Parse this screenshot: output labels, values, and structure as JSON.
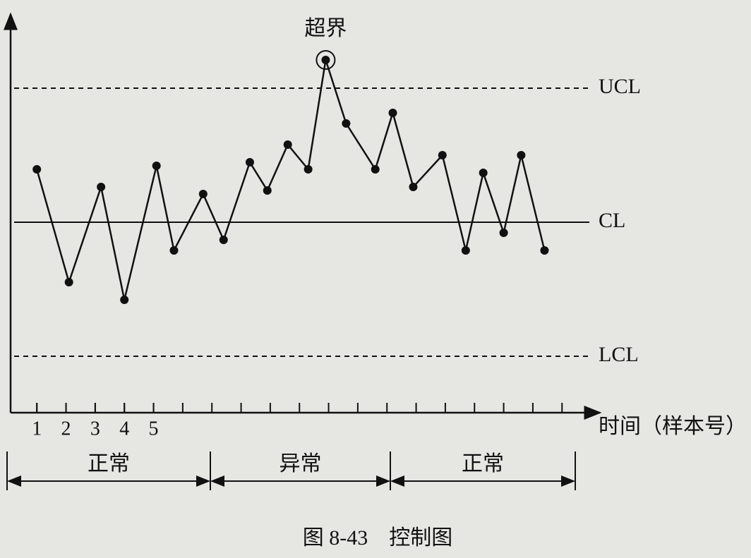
{
  "chart_data": {
    "type": "line",
    "caption": "图 8-43　控制图",
    "x_label": "时间（样本号）",
    "annotation": {
      "text": "超界",
      "point": 12
    },
    "x": [
      1.0,
      2.1,
      3.2,
      4.0,
      5.1,
      5.7,
      6.7,
      7.4,
      8.3,
      8.9,
      9.6,
      10.3,
      10.9,
      11.6,
      12.6,
      13.2,
      13.9,
      14.9,
      15.7,
      16.3,
      17.0,
      17.6,
      18.4
    ],
    "series": [
      {
        "color": "#111111",
        "values": [
          34.5,
          18.5,
          32,
          16,
          35,
          23,
          31,
          24.5,
          35.5,
          31.5,
          38,
          34.5,
          50,
          41,
          34.5,
          42.5,
          32,
          36.5,
          23,
          34,
          25.5,
          36.5,
          23
        ]
      }
    ],
    "limits": [
      {
        "name": "UCL",
        "value": 46,
        "dashed": true
      },
      {
        "name": "CL",
        "value": 27,
        "dashed": false
      },
      {
        "name": "LCL",
        "value": 8,
        "dashed": true
      }
    ],
    "segments": [
      {
        "label": "正常"
      },
      {
        "label": "异常"
      },
      {
        "label": "正常"
      }
    ],
    "xlim": [
      0.1,
      20.3
    ],
    "ylim": [
      0,
      56.5
    ],
    "xticks": [
      1,
      2,
      3,
      4,
      5
    ]
  }
}
